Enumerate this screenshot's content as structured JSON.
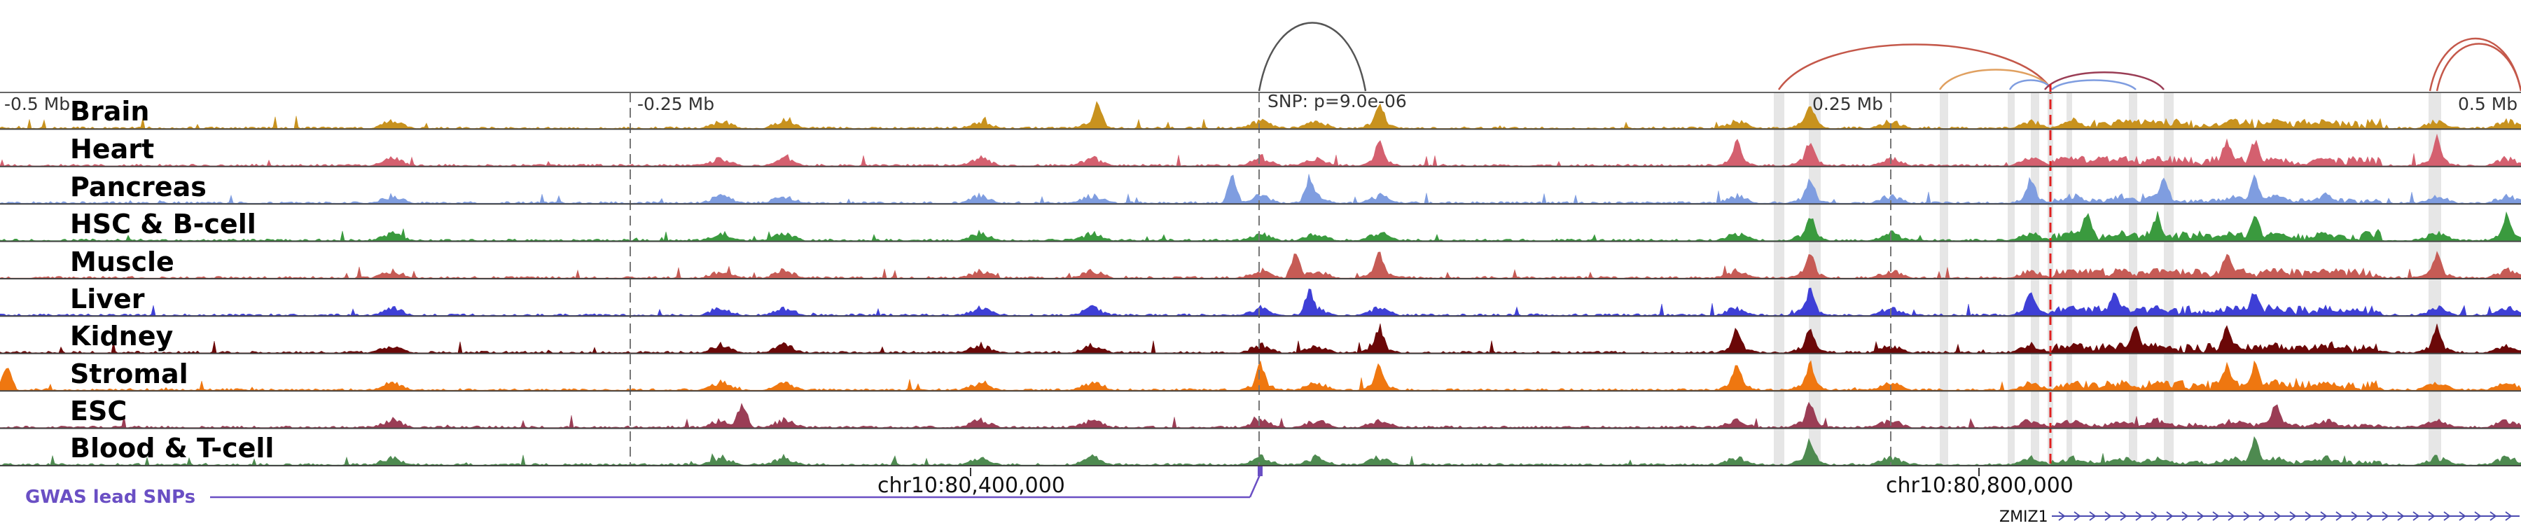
{
  "figure": {
    "snp_annotation": "SNP: p=9.0e-06",
    "axis_ticks": [
      {
        "label": "-0.5 Mb",
        "value": -0.5
      },
      {
        "label": "-0.25 Mb",
        "value": -0.25
      },
      {
        "label": "0.25 Mb",
        "value": 0.25
      },
      {
        "label": "0.5 Mb",
        "value": 0.5
      }
    ],
    "chrom_labels": [
      "chr10:80,400,000",
      "chr10:80,800,000"
    ],
    "gene_label": "ZMIZ1",
    "gwas_label": "GWAS lead SNPs",
    "tracks": [
      {
        "name": "Brain",
        "color": "#c8921e"
      },
      {
        "name": "Heart",
        "color": "#d4606f"
      },
      {
        "name": "Pancreas",
        "color": "#7f9de0"
      },
      {
        "name": "HSC & B-cell",
        "color": "#3a9a3e"
      },
      {
        "name": "Muscle",
        "color": "#c65b55"
      },
      {
        "name": "Liver",
        "color": "#3e3fd6"
      },
      {
        "name": "Kidney",
        "color": "#6b0808"
      },
      {
        "name": "Stromal",
        "color": "#ef7710"
      },
      {
        "name": "ESC",
        "color": "#9a3d55"
      },
      {
        "name": "Blood & T-cell",
        "color": "#4e8a50"
      }
    ],
    "colors": {
      "highlight": "#dcdcdc",
      "snp_line": "#e02020",
      "loop": "#c4584a",
      "gwas": "#6a4fc4"
    }
  }
}
